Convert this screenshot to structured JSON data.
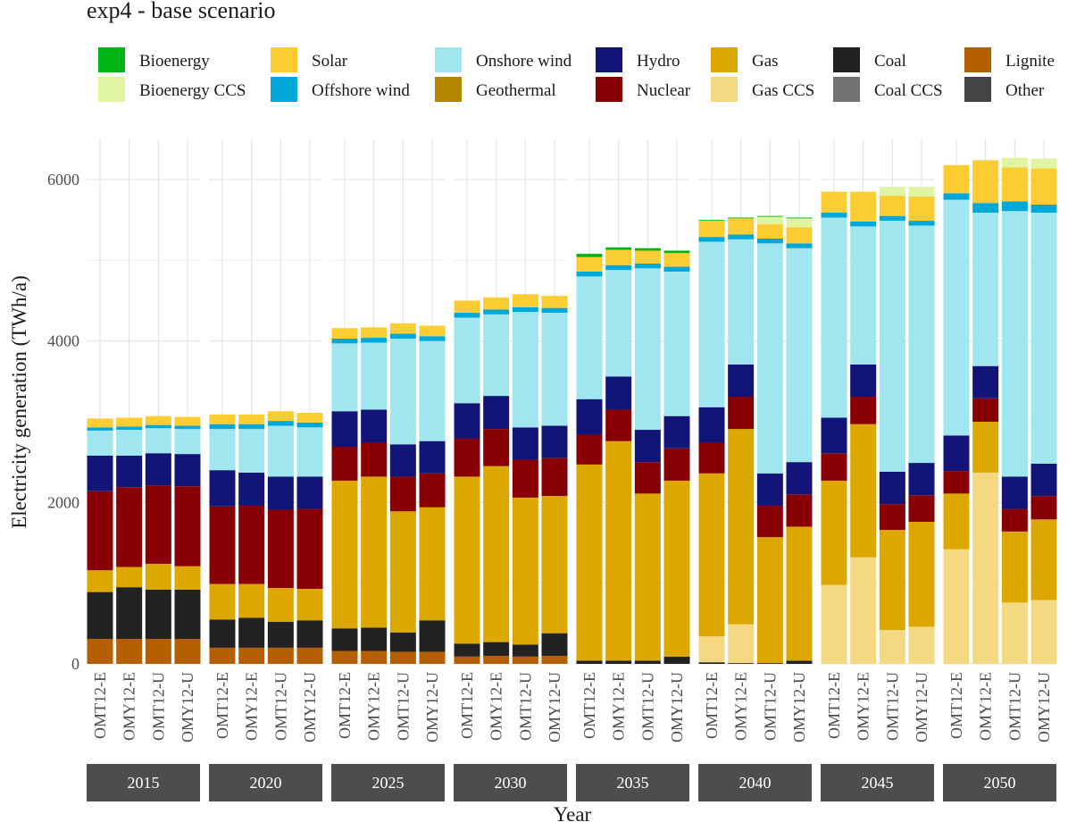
{
  "chart_data": {
    "type": "bar",
    "stacked": true,
    "title": "exp4 - base scenario",
    "xlabel": "Year",
    "ylabel": "Electricity generation (TWh/a)",
    "ylim": [
      0,
      6500
    ],
    "yticks": [
      0,
      2000,
      4000,
      6000
    ],
    "facets": [
      "2015",
      "2020",
      "2025",
      "2030",
      "2035",
      "2040",
      "2045",
      "2050"
    ],
    "models": [
      "OMT12-E",
      "OMY12-E",
      "OMT12-U",
      "OMY12-U"
    ],
    "legend": [
      {
        "name": "Bioenergy",
        "color": "#00b515"
      },
      {
        "name": "Bioenergy CCS",
        "color": "#dff5a2"
      },
      {
        "name": "Solar",
        "color": "#fccc33"
      },
      {
        "name": "Offshore wind",
        "color": "#00a8d8"
      },
      {
        "name": "Onshore wind",
        "color": "#a0e6ef"
      },
      {
        "name": "Geothermal",
        "color": "#b38600"
      },
      {
        "name": "Hydro",
        "color": "#131478"
      },
      {
        "name": "Nuclear",
        "color": "#890004"
      },
      {
        "name": "Gas",
        "color": "#dca800"
      },
      {
        "name": "Gas CCS",
        "color": "#f5d882"
      },
      {
        "name": "Coal",
        "color": "#222222"
      },
      {
        "name": "Coal CCS",
        "color": "#727272"
      },
      {
        "name": "Lignite",
        "color": "#b55f00"
      },
      {
        "name": "Other",
        "color": "#444444"
      }
    ],
    "stack_order": [
      "Lignite",
      "Coal",
      "Gas CCS",
      "Gas",
      "Nuclear",
      "Hydro",
      "Onshore wind",
      "Offshore wind",
      "Solar",
      "Bioenergy CCS",
      "Bioenergy"
    ],
    "series": [
      {
        "name": "Lignite",
        "values": [
          [
            310,
            310,
            310,
            310
          ],
          [
            200,
            200,
            200,
            200
          ],
          [
            160,
            160,
            150,
            150
          ],
          [
            90,
            100,
            90,
            100
          ],
          [
            0,
            0,
            0,
            0
          ],
          [
            0,
            0,
            0,
            0
          ],
          [
            0,
            0,
            0,
            0
          ],
          [
            0,
            0,
            0,
            0
          ]
        ]
      },
      {
        "name": "Coal",
        "values": [
          [
            580,
            640,
            610,
            610
          ],
          [
            350,
            370,
            320,
            340
          ],
          [
            280,
            290,
            240,
            390
          ],
          [
            160,
            170,
            150,
            280
          ],
          [
            40,
            40,
            40,
            90
          ],
          [
            20,
            10,
            10,
            40
          ],
          [
            0,
            0,
            0,
            0
          ],
          [
            0,
            0,
            0,
            0
          ]
        ]
      },
      {
        "name": "Gas CCS",
        "values": [
          [
            0,
            0,
            0,
            0
          ],
          [
            0,
            0,
            0,
            0
          ],
          [
            0,
            0,
            0,
            0
          ],
          [
            0,
            0,
            0,
            0
          ],
          [
            0,
            0,
            0,
            0
          ],
          [
            320,
            480,
            0,
            0
          ],
          [
            980,
            1320,
            420,
            460
          ],
          [
            1420,
            2370,
            760,
            790
          ]
        ]
      },
      {
        "name": "Gas",
        "values": [
          [
            270,
            250,
            320,
            290
          ],
          [
            440,
            420,
            420,
            390
          ],
          [
            1830,
            1870,
            1500,
            1400
          ],
          [
            2070,
            2180,
            1820,
            1700
          ],
          [
            2430,
            2720,
            2070,
            2180
          ],
          [
            2020,
            2420,
            1560,
            1660
          ],
          [
            1290,
            1650,
            1240,
            1300
          ],
          [
            690,
            630,
            880,
            1000
          ]
        ]
      },
      {
        "name": "Nuclear",
        "values": [
          [
            980,
            990,
            970,
            990
          ],
          [
            960,
            970,
            970,
            990
          ],
          [
            420,
            420,
            430,
            420
          ],
          [
            470,
            460,
            470,
            470
          ],
          [
            370,
            390,
            390,
            400
          ],
          [
            380,
            400,
            390,
            400
          ],
          [
            340,
            340,
            320,
            330
          ],
          [
            280,
            290,
            280,
            290
          ]
        ]
      },
      {
        "name": "Hydro",
        "values": [
          [
            440,
            390,
            400,
            400
          ],
          [
            450,
            410,
            410,
            400
          ],
          [
            440,
            410,
            400,
            400
          ],
          [
            440,
            410,
            400,
            400
          ],
          [
            440,
            410,
            400,
            400
          ],
          [
            440,
            400,
            400,
            400
          ],
          [
            440,
            400,
            400,
            400
          ],
          [
            440,
            400,
            400,
            400
          ]
        ]
      },
      {
        "name": "Onshore wind",
        "values": [
          [
            310,
            320,
            310,
            310
          ],
          [
            510,
            540,
            630,
            610
          ],
          [
            840,
            830,
            1310,
            1240
          ],
          [
            1060,
            1010,
            1430,
            1400
          ],
          [
            1520,
            1320,
            2000,
            1790
          ],
          [
            2050,
            1550,
            2850,
            2650
          ],
          [
            2480,
            1710,
            3110,
            2940
          ],
          [
            2920,
            1900,
            3290,
            3110
          ]
        ]
      },
      {
        "name": "Offshore wind",
        "values": [
          [
            40,
            40,
            40,
            40
          ],
          [
            60,
            60,
            60,
            60
          ],
          [
            60,
            60,
            60,
            60
          ],
          [
            60,
            60,
            60,
            60
          ],
          [
            60,
            60,
            60,
            60
          ],
          [
            60,
            60,
            60,
            60
          ],
          [
            60,
            60,
            60,
            60
          ],
          [
            80,
            120,
            120,
            100
          ]
        ]
      },
      {
        "name": "Solar",
        "values": [
          [
            110,
            110,
            110,
            110
          ],
          [
            120,
            120,
            120,
            120
          ],
          [
            130,
            130,
            130,
            130
          ],
          [
            150,
            150,
            160,
            150
          ],
          [
            180,
            190,
            160,
            170
          ],
          [
            200,
            200,
            180,
            200
          ],
          [
            260,
            370,
            250,
            300
          ],
          [
            350,
            530,
            420,
            450
          ]
        ]
      },
      {
        "name": "Bioenergy CCS",
        "values": [
          [
            0,
            0,
            0,
            0
          ],
          [
            0,
            0,
            0,
            0
          ],
          [
            0,
            0,
            0,
            0
          ],
          [
            0,
            0,
            0,
            0
          ],
          [
            0,
            0,
            0,
            0
          ],
          [
            0,
            0,
            90,
            110
          ],
          [
            0,
            0,
            110,
            120
          ],
          [
            0,
            0,
            120,
            120
          ]
        ]
      },
      {
        "name": "Bioenergy",
        "values": [
          [
            0,
            0,
            0,
            0
          ],
          [
            0,
            0,
            0,
            0
          ],
          [
            0,
            0,
            0,
            0
          ],
          [
            0,
            0,
            0,
            0
          ],
          [
            40,
            30,
            30,
            30
          ],
          [
            10,
            10,
            10,
            10
          ],
          [
            0,
            0,
            0,
            0
          ],
          [
            0,
            0,
            0,
            0
          ]
        ]
      }
    ]
  }
}
